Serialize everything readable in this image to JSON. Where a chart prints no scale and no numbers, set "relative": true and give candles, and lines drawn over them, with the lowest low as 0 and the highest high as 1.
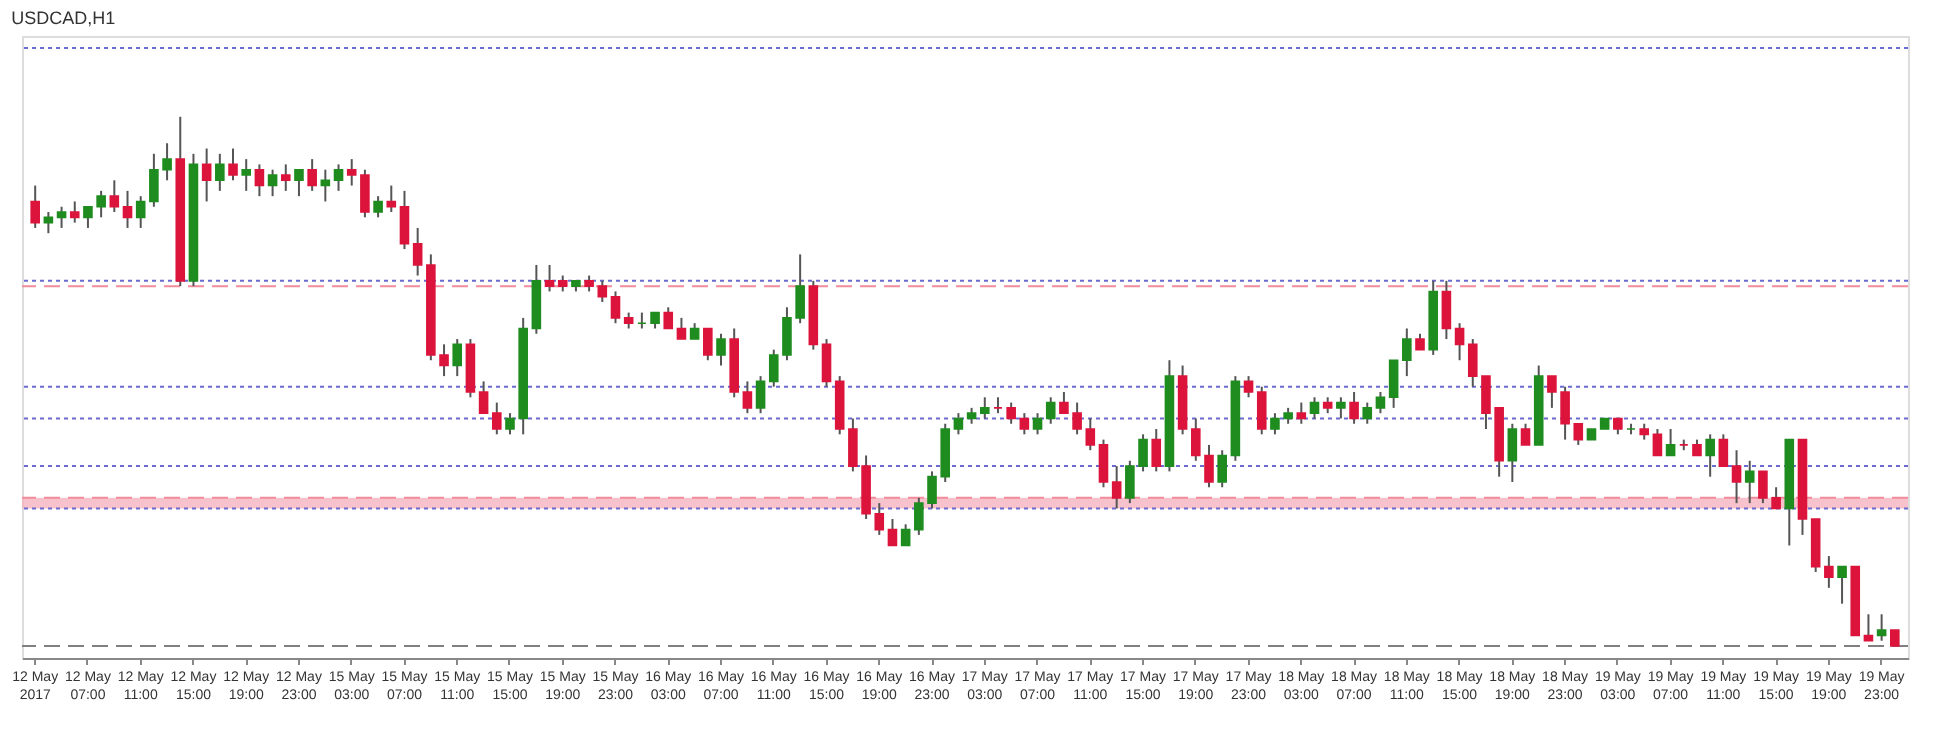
{
  "chart_data": {
    "type": "candlestick",
    "title": "USDCAD,H1",
    "relative": true,
    "colors": [
      "#dc143c",
      "#1e8c1e",
      "#1e8c1e",
      "#dc143c",
      "#1e8c1e",
      "#1e8c1e",
      "#dc143c",
      "#dc143c",
      "#1e8c1e",
      "#1e8c1e",
      "#1e8c1e",
      "#dc143c",
      "#1e8c1e",
      "#dc143c",
      "#1e8c1e",
      "#dc143c",
      "#1e8c1e",
      "#dc143c",
      "#1e8c1e",
      "#dc143c",
      "#1e8c1e",
      "#dc143c",
      "#1e8c1e",
      "#1e8c1e",
      "#dc143c",
      "#dc143c",
      "#1e8c1e",
      "#dc143c",
      "#dc143c",
      "#dc143c",
      "#dc143c",
      "#dc143c",
      "#1e8c1e",
      "#dc143c",
      "#dc143c",
      "#dc143c",
      "#1e8c1e",
      "#1e8c1e",
      "#1e8c1e",
      "#dc143c",
      "#dc143c",
      "#1e8c1e",
      "#dc143c",
      "#dc143c",
      "#dc143c",
      "#dc143c",
      "#1e8c1e",
      "#1e8c1e",
      "#dc143c",
      "#dc143c",
      "#1e8c1e",
      "#dc143c",
      "#1e8c1e",
      "#dc143c",
      "#dc143c",
      "#1e8c1e",
      "#1e8c1e",
      "#1e8c1e",
      "#1e8c1e",
      "#dc143c",
      "#dc143c",
      "#dc143c",
      "#dc143c",
      "#dc143c",
      "#dc143c",
      "#dc143c",
      "#1e8c1e",
      "#1e8c1e",
      "#1e8c1e",
      "#1e8c1e",
      "#1e8c1e",
      "#1e8c1e",
      "#1e8c1e",
      "#dc143c",
      "#dc143c",
      "#dc143c",
      "#1e8c1e",
      "#1e8c1e",
      "#dc143c",
      "#dc143c",
      "#dc143c",
      "#dc143c",
      "#dc143c",
      "#1e8c1e",
      "#1e8c1e",
      "#dc143c",
      "#1e8c1e",
      "#dc143c",
      "#dc143c",
      "#dc143c",
      "#1e8c1e",
      "#1e8c1e",
      "#dc143c",
      "#dc143c",
      "#1e8c1e",
      "#1e8c1e",
      "#dc143c",
      "#1e8c1e",
      "#dc143c",
      "#1e8c1e",
      "#dc143c",
      "#1e8c1e",
      "#1e8c1e",
      "#1e8c1e",
      "#1e8c1e",
      "#dc143c",
      "#1e8c1e",
      "#dc143c",
      "#dc143c",
      "#dc143c",
      "#dc143c",
      "#dc143c",
      "#1e8c1e",
      "#dc143c",
      "#1e8c1e",
      "#dc143c",
      "#dc143c",
      "#dc143c",
      "#1e8c1e",
      "#1e8c1e",
      "#dc143c",
      "#1e8c1e",
      "#dc143c",
      "#dc143c",
      "#1e8c1e",
      "#dc143c",
      "#dc143c",
      "#1e8c1e",
      "#dc143c",
      "#dc143c",
      "#1e8c1e",
      "#dc143c",
      "#dc143c",
      "#1e8c1e",
      "#dc143c",
      "#dc143c",
      "#dc143c",
      "#1e8c1e",
      "#dc143c",
      "#dc143c",
      "#1e8c1e",
      "#dc143c"
    ],
    "categories": [
      "12 May 2017",
      null,
      null,
      null,
      "12 May 07:00",
      null,
      null,
      null,
      "12 May 11:00",
      null,
      null,
      null,
      "12 May 15:00",
      null,
      null,
      null,
      "12 May 19:00",
      null,
      null,
      null,
      "12 May 23:00",
      null,
      null,
      null,
      "15 May 03:00",
      null,
      null,
      null,
      "15 May 07:00",
      null,
      null,
      null,
      "15 May 11:00",
      null,
      null,
      null,
      "15 May 15:00",
      null,
      null,
      null,
      "15 May 19:00",
      null,
      null,
      null,
      "15 May 23:00",
      null,
      null,
      null,
      "16 May 03:00",
      null,
      null,
      null,
      "16 May 07:00",
      null,
      null,
      null,
      "16 May 11:00",
      null,
      null,
      null,
      "16 May 15:00",
      null,
      null,
      null,
      "16 May 19:00",
      null,
      null,
      null,
      "16 May 23:00",
      null,
      null,
      null,
      "17 May 03:00",
      null,
      null,
      null,
      "17 May 07:00",
      null,
      null,
      null,
      "17 May 11:00",
      null,
      null,
      null,
      "17 May 15:00",
      null,
      null,
      null,
      "17 May 19:00",
      null,
      null,
      null,
      "17 May 23:00",
      null,
      null,
      null,
      "18 May 03:00",
      null,
      null,
      null,
      "18 May 07:00",
      null,
      null,
      null,
      "18 May 11:00",
      null,
      null,
      null,
      "18 May 15:00",
      null,
      null,
      null,
      "18 May 19:00",
      null,
      null,
      null,
      "18 May 23:00",
      null,
      null,
      null,
      "19 May 03:00",
      null,
      null,
      null,
      "19 May 07:00",
      null,
      null,
      null,
      "19 May 11:00",
      null,
      null,
      null,
      "19 May 15:00",
      null,
      null,
      null,
      "19 May 19:00",
      null,
      null,
      null,
      "19 May 23:00",
      null
    ],
    "ohlc": [
      [
        0.84,
        0.87,
        0.79,
        0.8
      ],
      [
        0.8,
        0.82,
        0.78,
        0.81
      ],
      [
        0.81,
        0.83,
        0.79,
        0.82
      ],
      [
        0.82,
        0.84,
        0.8,
        0.81
      ],
      [
        0.81,
        0.83,
        0.79,
        0.83
      ],
      [
        0.83,
        0.86,
        0.81,
        0.85
      ],
      [
        0.85,
        0.88,
        0.82,
        0.83
      ],
      [
        0.83,
        0.86,
        0.79,
        0.81
      ],
      [
        0.81,
        0.85,
        0.79,
        0.84
      ],
      [
        0.84,
        0.93,
        0.83,
        0.9
      ],
      [
        0.9,
        0.95,
        0.88,
        0.92
      ],
      [
        0.92,
        1.0,
        0.68,
        0.69
      ],
      [
        0.69,
        0.93,
        0.68,
        0.91
      ],
      [
        0.91,
        0.94,
        0.84,
        0.88
      ],
      [
        0.88,
        0.93,
        0.86,
        0.91
      ],
      [
        0.91,
        0.94,
        0.88,
        0.89
      ],
      [
        0.89,
        0.92,
        0.86,
        0.9
      ],
      [
        0.9,
        0.91,
        0.85,
        0.87
      ],
      [
        0.87,
        0.9,
        0.85,
        0.89
      ],
      [
        0.89,
        0.91,
        0.86,
        0.88
      ],
      [
        0.88,
        0.9,
        0.85,
        0.9
      ],
      [
        0.9,
        0.92,
        0.86,
        0.87
      ],
      [
        0.87,
        0.9,
        0.84,
        0.88
      ],
      [
        0.88,
        0.91,
        0.86,
        0.9
      ],
      [
        0.9,
        0.92,
        0.87,
        0.89
      ],
      [
        0.89,
        0.9,
        0.81,
        0.82
      ],
      [
        0.82,
        0.85,
        0.81,
        0.84
      ],
      [
        0.84,
        0.87,
        0.82,
        0.83
      ],
      [
        0.83,
        0.86,
        0.75,
        0.76
      ],
      [
        0.76,
        0.79,
        0.7,
        0.72
      ],
      [
        0.72,
        0.74,
        0.54,
        0.55
      ],
      [
        0.55,
        0.57,
        0.51,
        0.53
      ],
      [
        0.53,
        0.58,
        0.51,
        0.57
      ],
      [
        0.57,
        0.58,
        0.47,
        0.48
      ],
      [
        0.48,
        0.5,
        0.44,
        0.44
      ],
      [
        0.44,
        0.46,
        0.4,
        0.41
      ],
      [
        0.41,
        0.44,
        0.4,
        0.43
      ],
      [
        0.43,
        0.62,
        0.4,
        0.6
      ],
      [
        0.6,
        0.72,
        0.59,
        0.69
      ],
      [
        0.69,
        0.72,
        0.67,
        0.68
      ],
      [
        0.69,
        0.7,
        0.67,
        0.68
      ],
      [
        0.68,
        0.69,
        0.67,
        0.69
      ],
      [
        0.69,
        0.7,
        0.67,
        0.68
      ],
      [
        0.68,
        0.69,
        0.65,
        0.66
      ],
      [
        0.66,
        0.67,
        0.61,
        0.62
      ],
      [
        0.62,
        0.63,
        0.6,
        0.61
      ],
      [
        0.61,
        0.63,
        0.6,
        0.61
      ],
      [
        0.61,
        0.63,
        0.6,
        0.63
      ],
      [
        0.63,
        0.64,
        0.6,
        0.6
      ],
      [
        0.6,
        0.62,
        0.58,
        0.58
      ],
      [
        0.58,
        0.61,
        0.58,
        0.6
      ],
      [
        0.6,
        0.6,
        0.54,
        0.55
      ],
      [
        0.55,
        0.59,
        0.53,
        0.58
      ],
      [
        0.58,
        0.6,
        0.47,
        0.48
      ],
      [
        0.48,
        0.5,
        0.44,
        0.45
      ],
      [
        0.45,
        0.51,
        0.44,
        0.5
      ],
      [
        0.5,
        0.56,
        0.49,
        0.55
      ],
      [
        0.55,
        0.64,
        0.54,
        0.62
      ],
      [
        0.62,
        0.74,
        0.61,
        0.68
      ],
      [
        0.68,
        0.69,
        0.56,
        0.57
      ],
      [
        0.57,
        0.58,
        0.49,
        0.5
      ],
      [
        0.5,
        0.51,
        0.4,
        0.41
      ],
      [
        0.41,
        0.43,
        0.33,
        0.34
      ],
      [
        0.34,
        0.36,
        0.24,
        0.25
      ],
      [
        0.25,
        0.27,
        0.21,
        0.22
      ],
      [
        0.22,
        0.24,
        0.19,
        0.19
      ],
      [
        0.19,
        0.23,
        0.19,
        0.22
      ],
      [
        0.22,
        0.28,
        0.21,
        0.27
      ],
      [
        0.27,
        0.33,
        0.26,
        0.32
      ],
      [
        0.32,
        0.42,
        0.31,
        0.41
      ],
      [
        0.41,
        0.44,
        0.4,
        0.43
      ],
      [
        0.43,
        0.45,
        0.42,
        0.44
      ],
      [
        0.44,
        0.47,
        0.43,
        0.45
      ],
      [
        0.45,
        0.47,
        0.44,
        0.45
      ],
      [
        0.45,
        0.46,
        0.42,
        0.43
      ],
      [
        0.43,
        0.44,
        0.4,
        0.41
      ],
      [
        0.41,
        0.44,
        0.4,
        0.43
      ],
      [
        0.43,
        0.47,
        0.42,
        0.46
      ],
      [
        0.46,
        0.48,
        0.44,
        0.44
      ],
      [
        0.44,
        0.46,
        0.4,
        0.41
      ],
      [
        0.41,
        0.43,
        0.37,
        0.38
      ],
      [
        0.38,
        0.39,
        0.3,
        0.31
      ],
      [
        0.31,
        0.34,
        0.26,
        0.28
      ],
      [
        0.28,
        0.35,
        0.27,
        0.34
      ],
      [
        0.34,
        0.4,
        0.33,
        0.39
      ],
      [
        0.39,
        0.41,
        0.33,
        0.34
      ],
      [
        0.34,
        0.54,
        0.33,
        0.51
      ],
      [
        0.51,
        0.53,
        0.4,
        0.41
      ],
      [
        0.41,
        0.43,
        0.35,
        0.36
      ],
      [
        0.36,
        0.38,
        0.3,
        0.31
      ],
      [
        0.31,
        0.37,
        0.3,
        0.36
      ],
      [
        0.36,
        0.51,
        0.35,
        0.5
      ],
      [
        0.5,
        0.51,
        0.47,
        0.48
      ],
      [
        0.48,
        0.49,
        0.4,
        0.41
      ],
      [
        0.41,
        0.44,
        0.4,
        0.43
      ],
      [
        0.43,
        0.45,
        0.42,
        0.44
      ],
      [
        0.44,
        0.46,
        0.42,
        0.43
      ],
      [
        0.44,
        0.47,
        0.43,
        0.46
      ],
      [
        0.46,
        0.47,
        0.44,
        0.45
      ],
      [
        0.45,
        0.47,
        0.43,
        0.46
      ],
      [
        0.46,
        0.48,
        0.42,
        0.43
      ],
      [
        0.43,
        0.46,
        0.42,
        0.45
      ],
      [
        0.45,
        0.48,
        0.44,
        0.47
      ],
      [
        0.47,
        0.54,
        0.45,
        0.54
      ],
      [
        0.54,
        0.6,
        0.51,
        0.58
      ],
      [
        0.58,
        0.59,
        0.56,
        0.56
      ],
      [
        0.56,
        0.69,
        0.55,
        0.67
      ],
      [
        0.67,
        0.69,
        0.58,
        0.6
      ],
      [
        0.6,
        0.61,
        0.54,
        0.57
      ],
      [
        0.57,
        0.58,
        0.49,
        0.51
      ],
      [
        0.51,
        0.51,
        0.41,
        0.44
      ],
      [
        0.45,
        0.45,
        0.32,
        0.35
      ],
      [
        0.35,
        0.42,
        0.31,
        0.41
      ],
      [
        0.41,
        0.42,
        0.38,
        0.38
      ],
      [
        0.38,
        0.53,
        0.38,
        0.51
      ],
      [
        0.51,
        0.51,
        0.45,
        0.48
      ],
      [
        0.48,
        0.49,
        0.39,
        0.42
      ],
      [
        0.42,
        0.42,
        0.38,
        0.39
      ],
      [
        0.39,
        0.41,
        0.39,
        0.41
      ],
      [
        0.41,
        0.43,
        0.41,
        0.43
      ],
      [
        0.43,
        0.43,
        0.4,
        0.41
      ],
      [
        0.41,
        0.42,
        0.4,
        0.41
      ],
      [
        0.41,
        0.42,
        0.39,
        0.4
      ],
      [
        0.4,
        0.41,
        0.36,
        0.36
      ],
      [
        0.36,
        0.41,
        0.36,
        0.38
      ],
      [
        0.38,
        0.39,
        0.37,
        0.38
      ],
      [
        0.38,
        0.39,
        0.36,
        0.36
      ],
      [
        0.36,
        0.4,
        0.32,
        0.39
      ],
      [
        0.39,
        0.4,
        0.34,
        0.34
      ],
      [
        0.34,
        0.37,
        0.27,
        0.31
      ],
      [
        0.31,
        0.35,
        0.27,
        0.33
      ],
      [
        0.33,
        0.33,
        0.27,
        0.28
      ],
      [
        0.28,
        0.3,
        0.26,
        0.26
      ],
      [
        0.26,
        0.39,
        0.19,
        0.39
      ],
      [
        0.39,
        0.39,
        0.21,
        0.24
      ],
      [
        0.24,
        0.24,
        0.14,
        0.15
      ],
      [
        0.15,
        0.17,
        0.11,
        0.13
      ],
      [
        0.13,
        0.15,
        0.08,
        0.15
      ],
      [
        0.15,
        0.15,
        0.02,
        0.02
      ],
      [
        0.02,
        0.06,
        0.01,
        0.01
      ],
      [
        0.02,
        0.06,
        0.01,
        0.03
      ],
      [
        0.03,
        0.03,
        0.0,
        0.0
      ]
    ],
    "ref_lines": [
      {
        "axis": "y",
        "value": 1.13,
        "color": "#6a6ad0",
        "line_style": "dotted"
      },
      {
        "axis": "y",
        "value": 0.69,
        "color": "#6a6ad0",
        "line_style": "dotted"
      },
      {
        "axis": "y",
        "value": 0.68,
        "color": "#f08c9c",
        "line_style": "dashed"
      },
      {
        "axis": "y",
        "value": 0.49,
        "color": "#6a6ad0",
        "line_style": "dotted"
      },
      {
        "axis": "y",
        "value": 0.43,
        "color": "#6a6ad0",
        "line_style": "dotted"
      },
      {
        "axis": "y",
        "value": 0.34,
        "color": "#6a6ad0",
        "line_style": "dotted"
      },
      {
        "axis": "y",
        "value": 0.28,
        "color": "#f08c9c",
        "line_style": "dashed"
      },
      {
        "axis": "y",
        "value": 0.26,
        "color": "#6a6ad0",
        "line_style": "dotted"
      },
      {
        "axis": "y",
        "value": 0.0,
        "color": "#808080",
        "line_style": "dashed"
      }
    ],
    "bands": [
      {
        "axis": "y",
        "from": 0.26,
        "to": 0.28,
        "color": "#f6b3bf"
      }
    ]
  }
}
